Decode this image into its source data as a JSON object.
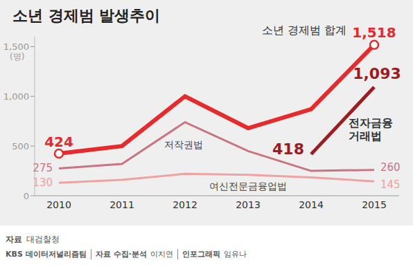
{
  "chart_data": {
    "type": "line",
    "title": "소년 경제범 발생추이",
    "y_label": "(명)",
    "categories": [
      "2010",
      "2011",
      "2012",
      "2013",
      "2014",
      "2015"
    ],
    "series": [
      {
        "name": "소년 경제범 합계",
        "color": "#e52b2b",
        "values": [
          424,
          500,
          1000,
          680,
          870,
          1518
        ],
        "value_labels": [
          "424",
          null,
          null,
          null,
          null,
          "1,518"
        ],
        "marker": "circle"
      },
      {
        "name": "저작권법",
        "color": "#c97480",
        "values": [
          275,
          320,
          740,
          450,
          250,
          260
        ],
        "value_labels": [
          "275",
          null,
          null,
          null,
          null,
          "260"
        ],
        "marker": "none"
      },
      {
        "name": "여신전문금융업법",
        "color": "#f0a1a1",
        "values": [
          130,
          160,
          220,
          210,
          185,
          145
        ],
        "value_labels": [
          "130",
          null,
          null,
          null,
          null,
          "145"
        ],
        "marker": "none"
      },
      {
        "name": "전자금융거래법",
        "color": "#9e1c20",
        "values": [
          null,
          null,
          null,
          null,
          418,
          1093
        ],
        "value_labels": [
          null,
          null,
          null,
          null,
          "418",
          "1,093"
        ],
        "marker": "none"
      }
    ],
    "ylim": [
      0,
      1600
    ],
    "yticks": [
      0,
      500,
      {
        "value": 1000,
        "label": "1,000"
      },
      {
        "value": 1500,
        "label": "1,500"
      }
    ],
    "grid": false,
    "data_labels": true,
    "legend": "none",
    "source_label": "자료",
    "source": "대검찰청",
    "credits": [
      {
        "label": "KBS 데이터저널리즘팀"
      },
      {
        "label": "자료 수집·분석",
        "name": "이지연"
      },
      {
        "label": "인포그래픽",
        "name": "임유나"
      }
    ]
  }
}
